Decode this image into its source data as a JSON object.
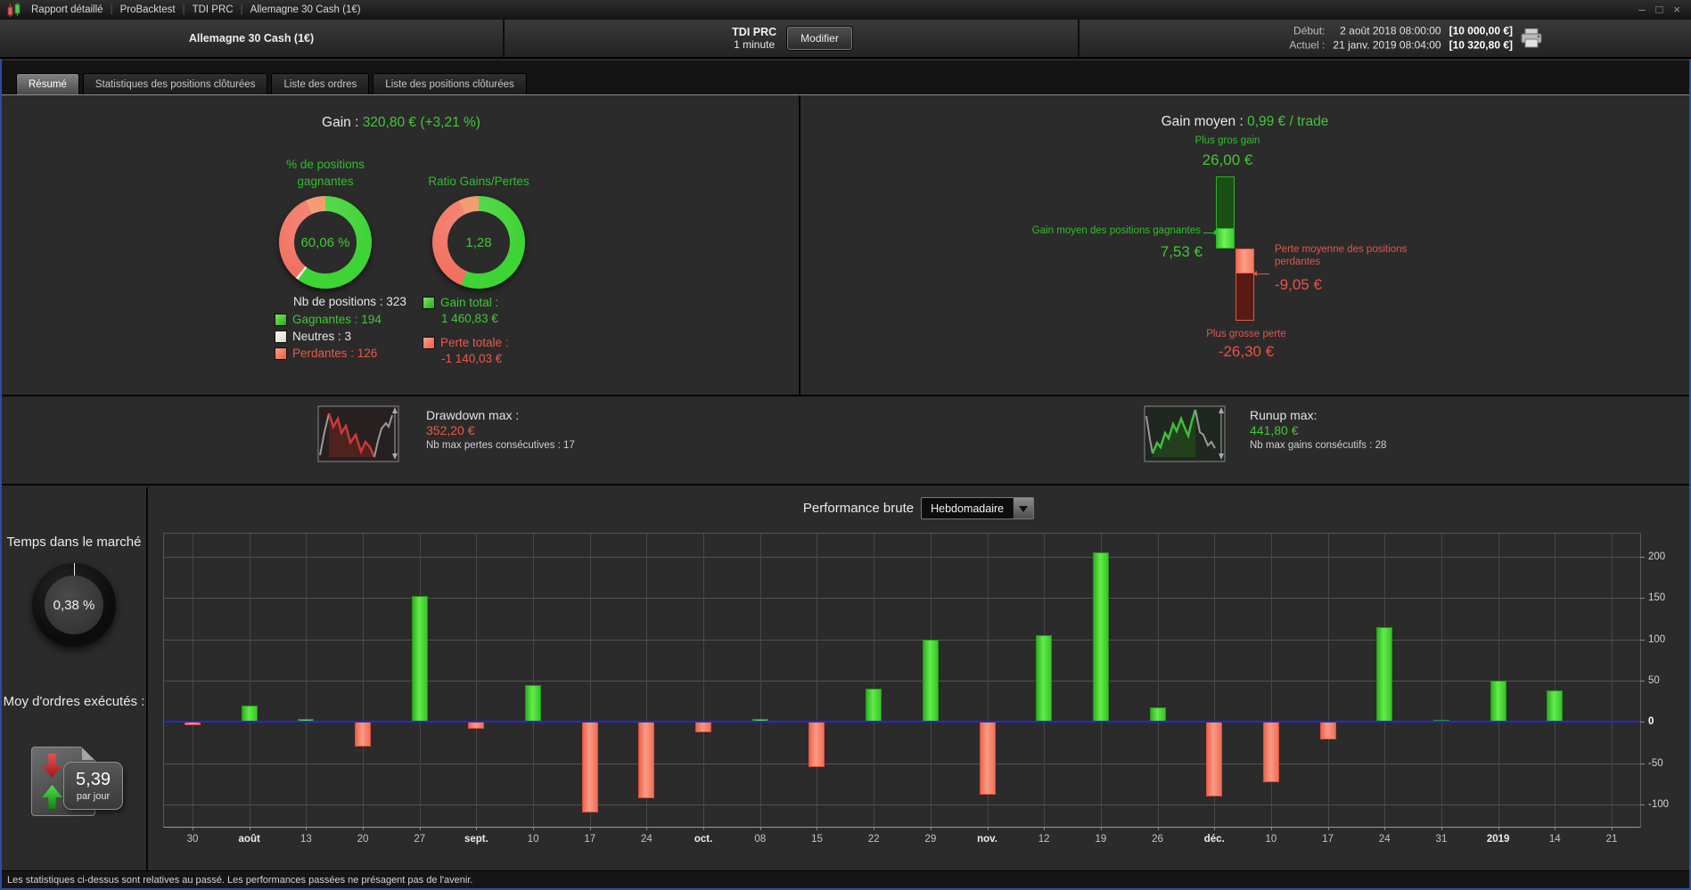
{
  "titlebar": {
    "menu": [
      "Rapport détaillé",
      "ProBacktest",
      "TDI PRC",
      "Allemagne 30 Cash (1€)"
    ],
    "controls": {
      "minimize": "–",
      "maximize": "□",
      "close": "×"
    }
  },
  "header": {
    "instrument": "Allemagne 30 Cash (1€)",
    "system": "TDI PRC",
    "timeframe": "1 minute",
    "modify": "Modifier",
    "rows": [
      {
        "label": "Début:",
        "date": "2 août 2018 08:00:00",
        "amount": "[10 000,00 €]"
      },
      {
        "label": "Actuel :",
        "date": "21 janv. 2019 08:04:00",
        "amount": "[10 320,80 €]"
      }
    ]
  },
  "tabs": [
    {
      "label": "Résumé",
      "active": true
    },
    {
      "label": "Statistiques des positions clôturées",
      "active": false
    },
    {
      "label": "Liste des ordres",
      "active": false
    },
    {
      "label": "Liste des positions clôturées",
      "active": false
    }
  ],
  "summary": {
    "gain_label": "Gain :",
    "gain_value": "320,80 € (+3,21 %)",
    "donut1": {
      "title": "% de positions gagnantes",
      "value": "60,06 %",
      "green_pct": 60.06,
      "white_pct": 0.93
    },
    "donut2": {
      "title": "Ratio Gains/Pertes",
      "value": "1,28",
      "green_pct": 56.14,
      "white_pct": 0
    },
    "positions": {
      "total_label": "Nb de positions : 323",
      "items": [
        {
          "label": "Gagnantes : 194",
          "color": "green"
        },
        {
          "label": "Neutres : 3",
          "color": "white"
        },
        {
          "label": "Perdantes : 126",
          "color": "red"
        }
      ]
    },
    "totals": [
      {
        "label": "Gain total :",
        "value": "1 460,83 €",
        "color": "green"
      },
      {
        "label": "Perte totale :",
        "value": "-1 140,03 €",
        "color": "red"
      }
    ]
  },
  "gain_moyen": {
    "title_label": "Gain moyen :",
    "title_value": "0,99 € / trade",
    "biggest_gain_label": "Plus gros gain",
    "biggest_gain": "26,00 €",
    "avg_win_label": "Gain moyen des positions gagnantes",
    "avg_win": "7,53 €",
    "avg_loss_label": "Perte moyenne des positions perdantes",
    "avg_loss": "-9,05 €",
    "biggest_loss_label": "Plus grosse perte",
    "biggest_loss": "-26,30 €"
  },
  "drawdown": {
    "label": "Drawdown max :",
    "value": "352,20 €",
    "sub": "Nb max pertes consécutives : 17"
  },
  "runup": {
    "label": "Runup max:",
    "value": "441,80 €",
    "sub": "Nb max gains consécutifs : 28"
  },
  "market_time": {
    "label": "Temps dans le marché",
    "value": "0,38 %",
    "pct": 0.38
  },
  "orders": {
    "label": "Moy d'ordres exécutés :",
    "value": "5,39",
    "unit": "par jour"
  },
  "performance": {
    "label": "Performance brute",
    "dropdown_value": "Hebdomadaire"
  },
  "chart_data": {
    "type": "bar",
    "title": "Performance brute (Hebdomadaire)",
    "categories": [
      "30",
      "août",
      "13",
      "20",
      "27",
      "sept.",
      "10",
      "17",
      "24",
      "oct.",
      "08",
      "15",
      "22",
      "29",
      "nov.",
      "12",
      "19",
      "26",
      "déc.",
      "10",
      "17",
      "24",
      "31",
      "2019",
      "14",
      "21"
    ],
    "bold_categories": [
      "août",
      "sept.",
      "oct.",
      "nov.",
      "déc.",
      "2019"
    ],
    "values": [
      -4,
      20,
      4,
      -30,
      152,
      -8,
      45,
      -110,
      -93,
      -13,
      4,
      -55,
      40,
      100,
      -88,
      105,
      205,
      18,
      -90,
      -73,
      -21,
      115,
      2,
      50,
      38,
      0
    ],
    "xlabel": "",
    "ylabel": "",
    "yticks": [
      200,
      150,
      100,
      50,
      0,
      -50,
      -100
    ],
    "ylim": [
      -127,
      228
    ],
    "grid": true,
    "legend": "none",
    "zero_line_color": "#2629d2",
    "pos_color": "#44d02e",
    "neg_color": "#f4796a"
  },
  "statusbar": {
    "text": "Les statistiques ci-dessus sont relatives au passé. Les performances passées ne présagent pas de l'avenir."
  },
  "colors": {
    "green_text": "#3fc935",
    "red_text": "#ee5748",
    "donut_green": "#3fd435",
    "donut_red": "#f2705f",
    "accent_blue": "#2e4d9e"
  }
}
